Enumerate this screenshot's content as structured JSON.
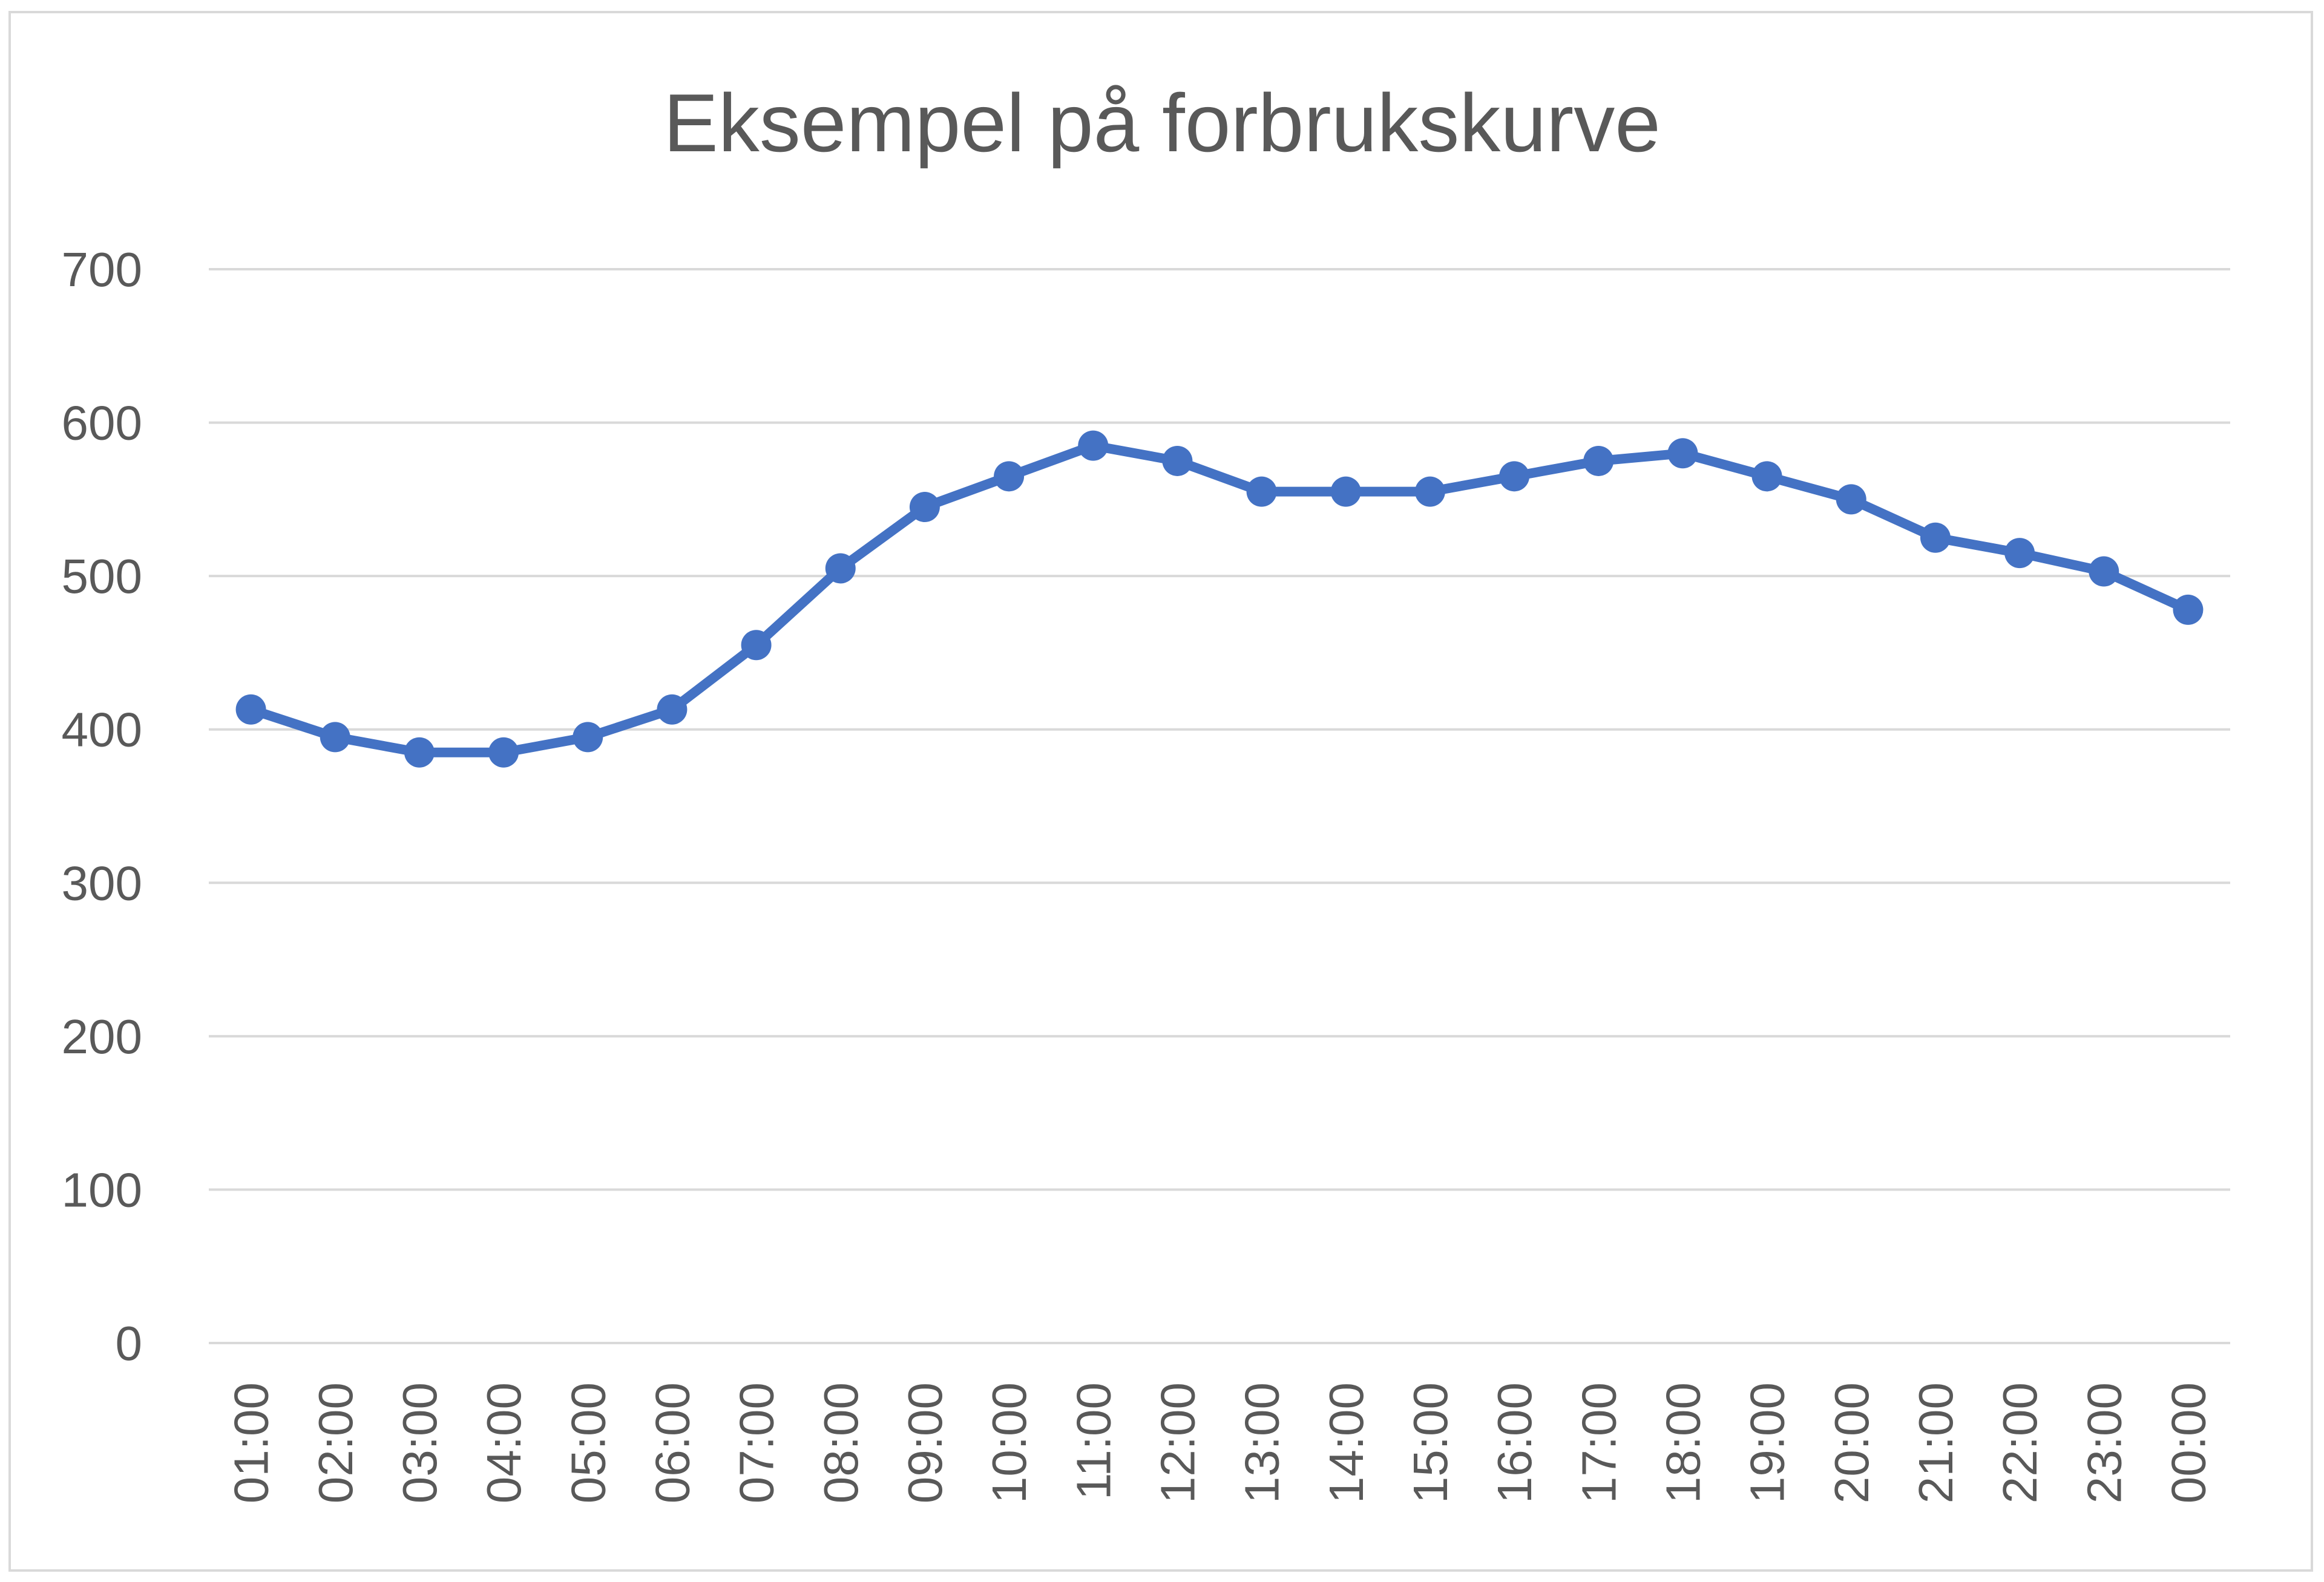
{
  "chart_data": {
    "type": "line",
    "title": "Eksempel på forbrukskurve",
    "xlabel": "",
    "ylabel": "",
    "ylim": [
      0,
      700
    ],
    "yticks": [
      "0",
      "100",
      "200",
      "300",
      "400",
      "500",
      "600",
      "700"
    ],
    "grid": true,
    "legend": "none",
    "categories": [
      "01:00",
      "02:00",
      "03:00",
      "04:00",
      "05:00",
      "06:00",
      "07:00",
      "08:00",
      "09:00",
      "10:00",
      "11:00",
      "12:00",
      "13:00",
      "14:00",
      "15:00",
      "16:00",
      "17:00",
      "18:00",
      "19:00",
      "20:00",
      "21:00",
      "22:00",
      "23:00",
      "00:00"
    ],
    "series": [
      {
        "color": "#4472c4",
        "values": [
          413,
          395,
          385,
          385,
          395,
          413,
          455,
          505,
          545,
          565,
          585,
          575,
          555,
          555,
          555,
          565,
          575,
          580,
          565,
          550,
          525,
          515,
          503,
          478
        ]
      }
    ]
  }
}
